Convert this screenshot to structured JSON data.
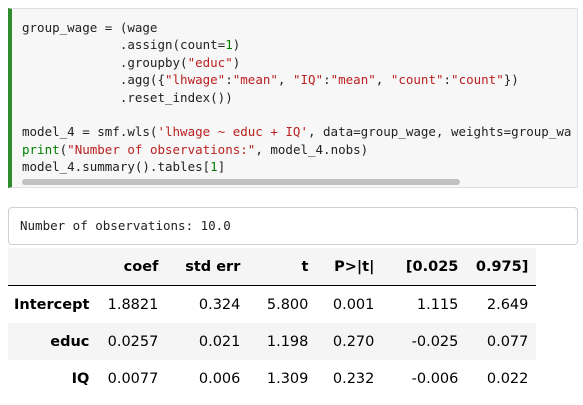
{
  "code": [
    [
      "group_wage = (wage",
      "             .assign(count=1)",
      "             .groupby(\"educ\")",
      "             .agg({\"lhwage\":\"mean\", \"IQ\":\"mean\", \"count\":\"count\"})",
      "             .reset_index())"
    ],
    [
      "model_4 = smf.wls('lhwage ~ educ + IQ', data=group_wage, weights=group_wa",
      "print(\"Number of observations:\", model_4.nobs)",
      "model_4.summary().tables[1]"
    ]
  ],
  "output": "Number of observations: 10.0",
  "table": {
    "columns": [
      "coef",
      "std err",
      "t",
      "P>|t|",
      "[0.025",
      "0.975]"
    ],
    "rows": [
      {
        "label": "Intercept",
        "cells": [
          "1.8821",
          "0.324",
          "5.800",
          "0.001",
          "1.115",
          "2.649"
        ]
      },
      {
        "label": "educ",
        "cells": [
          "0.0257",
          "0.021",
          "1.198",
          "0.270",
          "-0.025",
          "0.077"
        ]
      },
      {
        "label": "IQ",
        "cells": [
          "0.0077",
          "0.006",
          "1.309",
          "0.232",
          "-0.006",
          "0.022"
        ]
      }
    ]
  }
}
